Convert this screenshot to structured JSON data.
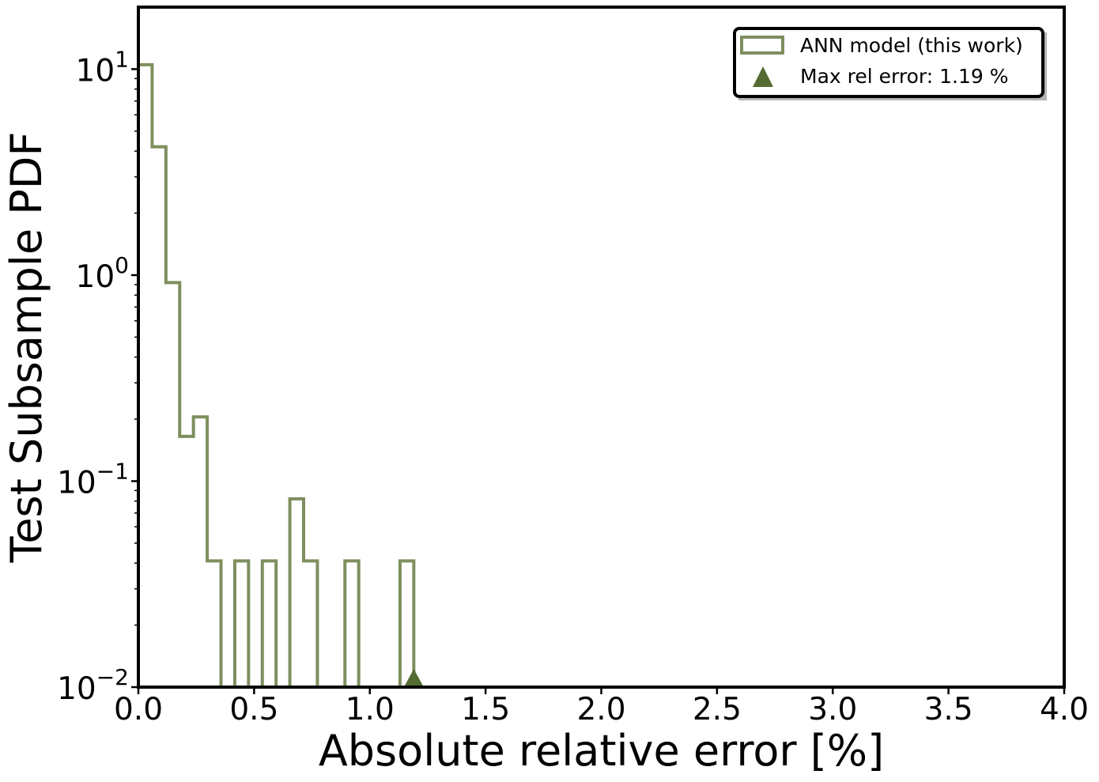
{
  "chart_data": {
    "type": "histogram",
    "xlabel": "Absolute relative error [%]",
    "ylabel": "Test Subsample PDF",
    "xlim": [
      0.0,
      4.0
    ],
    "ylim": [
      0.01,
      20.0
    ],
    "yscale": "log",
    "grid": false,
    "legend_placement": "top-right",
    "x_ticks": [
      0.0,
      0.5,
      1.0,
      1.5,
      2.0,
      2.5,
      3.0,
      3.5,
      4.0
    ],
    "x_tick_labels": [
      "0.0",
      "0.5",
      "1.0",
      "1.5",
      "2.0",
      "2.5",
      "3.0",
      "3.5",
      "4.0"
    ],
    "y_ticks": [
      {
        "value": 10,
        "base": "10",
        "exp": "1"
      },
      {
        "value": 1,
        "base": "10",
        "exp": "0"
      },
      {
        "value": 0.1,
        "base": "10",
        "exp": "−1"
      },
      {
        "value": 0.01,
        "base": "10",
        "exp": "−2"
      }
    ],
    "bin_width": 0.0595,
    "bin_start": 0.0,
    "bin_heights": [
      10.5,
      4.2,
      0.92,
      0.165,
      0.205,
      0.041,
      0.0,
      0.041,
      0.0,
      0.041,
      0.0,
      0.082,
      0.041,
      0.0,
      0.0,
      0.041,
      0.0,
      0.0,
      0.0,
      0.041
    ],
    "series": [
      {
        "name": "ANN model (this work)",
        "kind": "step-histogram",
        "color": "#7e8f5e"
      },
      {
        "name": "Max rel error: 1.19 %",
        "kind": "marker",
        "marker": "triangle",
        "x": 1.19,
        "color": "#546b32"
      }
    ],
    "legend": {
      "entries": [
        "ANN model (this work)",
        "Max rel error: 1.19 %"
      ]
    },
    "colors": {
      "histogram": "#7e8f5e",
      "marker": "#546b32",
      "axes": "#000000"
    }
  }
}
